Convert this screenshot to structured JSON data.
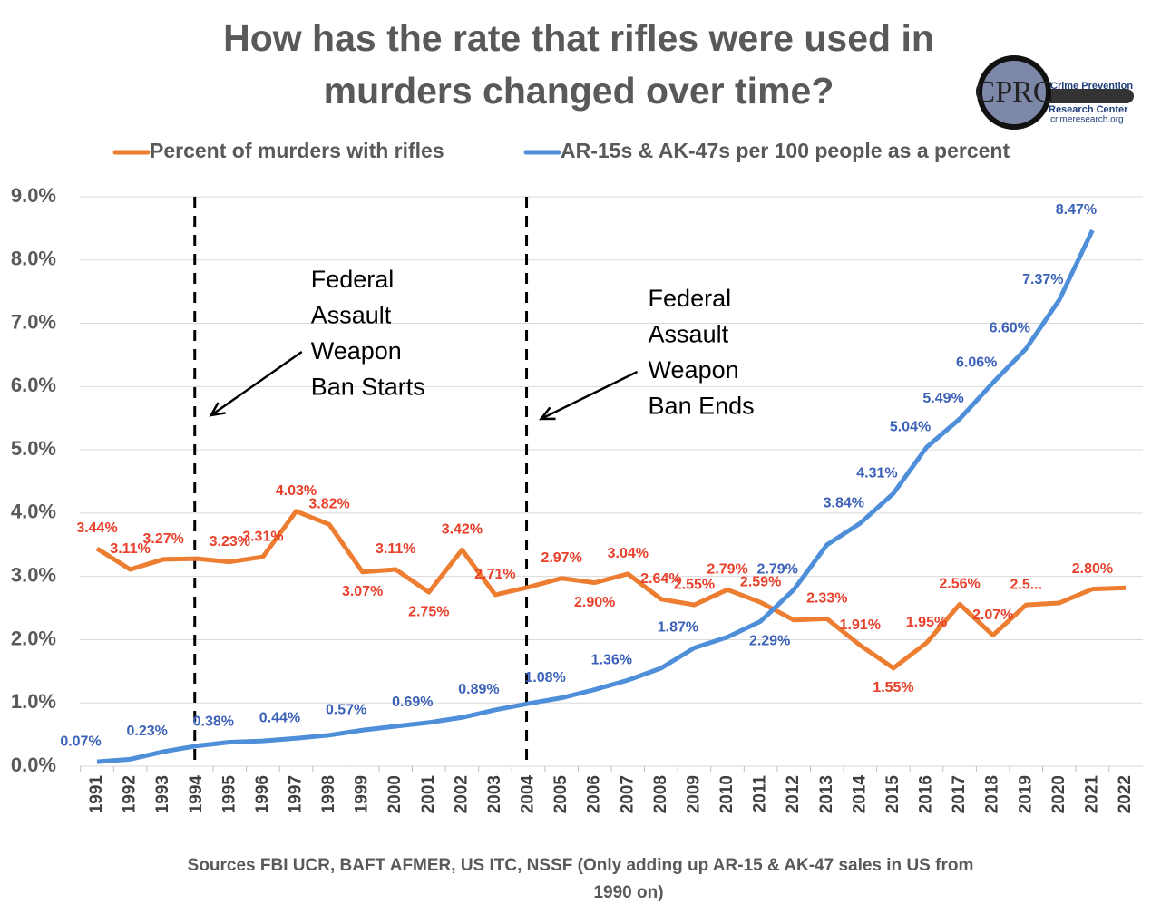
{
  "chart_data": {
    "type": "line",
    "title": [
      "How has the rate that rifles were used in",
      "murders changed over time?"
    ],
    "logo": {
      "mark": "CPRC",
      "lines": [
        "Crime Prevention",
        "Research Center",
        "crimeresearch.org"
      ]
    },
    "categories": [
      "1991",
      "1992",
      "1993",
      "1994",
      "1995",
      "1996",
      "1997",
      "1998",
      "1999",
      "2000",
      "2001",
      "2002",
      "2003",
      "2004",
      "2005",
      "2006",
      "2007",
      "2008",
      "2009",
      "2010",
      "2011",
      "2012",
      "2013",
      "2014",
      "2015",
      "2016",
      "2017",
      "2018",
      "2019",
      "2020",
      "2021",
      "2022"
    ],
    "series": [
      {
        "name": "Percent of murders with rifles",
        "color": "#ed7d31",
        "label_color": "#e8402a",
        "values": [
          3.44,
          3.11,
          3.27,
          3.28,
          3.23,
          3.31,
          4.03,
          3.82,
          3.07,
          3.11,
          2.75,
          3.42,
          2.71,
          2.83,
          2.97,
          2.9,
          3.04,
          2.64,
          2.55,
          2.79,
          2.59,
          2.31,
          2.33,
          1.91,
          1.55,
          1.95,
          2.56,
          2.07,
          2.55,
          2.58,
          2.8,
          2.82
        ],
        "value_labels": [
          "3.44%",
          "3.11%",
          "3.27%",
          null,
          "3.23%",
          "3.31%",
          "4.03%",
          "3.82%",
          "3.07%",
          "3.11%",
          "2.75%",
          "3.42%",
          "2.71%",
          null,
          "2.97%",
          "2.90%",
          "3.04%",
          "2.64%",
          "2.55%",
          "2.79%",
          "2.59%",
          null,
          "2.33%",
          "1.91%",
          "1.55%",
          "1.95%",
          "2.56%",
          "2.07%",
          "2.5...",
          null,
          "2.80%",
          null
        ]
      },
      {
        "name": "AR-15s & AK-47s per 100 people as a percent",
        "color": "#4f8ed8",
        "label_color": "#3b62b8",
        "values": [
          0.07,
          0.11,
          0.23,
          0.32,
          0.38,
          0.4,
          0.44,
          0.49,
          0.57,
          0.63,
          0.69,
          0.77,
          0.89,
          0.99,
          1.08,
          1.21,
          1.36,
          1.55,
          1.87,
          2.04,
          2.29,
          2.79,
          3.5,
          3.84,
          4.31,
          5.04,
          5.49,
          6.06,
          6.6,
          7.37,
          8.47,
          null
        ],
        "value_labels": [
          "0.07%",
          null,
          "0.23%",
          null,
          "0.38%",
          null,
          "0.44%",
          null,
          "0.57%",
          null,
          "0.69%",
          null,
          "0.89%",
          null,
          "1.08%",
          null,
          "1.36%",
          null,
          "1.87%",
          null,
          "2.29%",
          "2.79%",
          null,
          "3.84%",
          "4.31%",
          "5.04%",
          "5.49%",
          "6.06%",
          "6.60%",
          "7.37%",
          "8.47%",
          null
        ]
      }
    ],
    "ylim": [
      0,
      9
    ],
    "yticks": [
      {
        "value": 0,
        "label": "0.0%"
      },
      {
        "value": 1,
        "label": "1.0%"
      },
      {
        "value": 2,
        "label": "2.0%"
      },
      {
        "value": 3,
        "label": "3.0%"
      },
      {
        "value": 4,
        "label": "4.0%"
      },
      {
        "value": 5,
        "label": "5.0%"
      },
      {
        "value": 6,
        "label": "6.0%"
      },
      {
        "value": 7,
        "label": "7.0%"
      },
      {
        "value": 8,
        "label": "8.0%"
      },
      {
        "value": 9,
        "label": "9.0%"
      }
    ],
    "grid": true,
    "annotations": [
      {
        "x": "1994",
        "lines": [
          "Federal",
          "Assault",
          "Weapon",
          "Ban Starts"
        ]
      },
      {
        "x": "2004",
        "lines": [
          "Federal",
          "Assault",
          "Weapon",
          "Ban Ends"
        ]
      }
    ],
    "source": [
      "Sources FBI UCR, BAFT AFMER, US ITC, NSSF (Only adding up AR-15 & AK-47 sales in US from",
      "1990 on)"
    ]
  }
}
